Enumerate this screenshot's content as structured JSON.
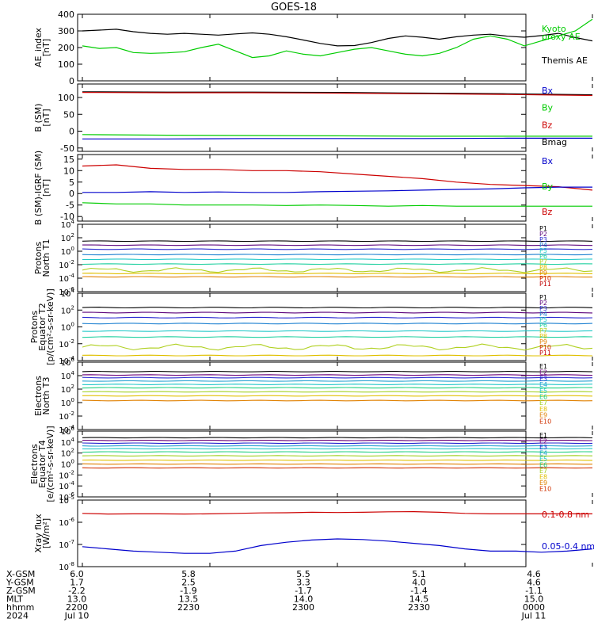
{
  "title": "GOES-18",
  "colors": {
    "black": "#000000",
    "green": "#00cc00",
    "blue": "#0000cc",
    "red": "#cc0000",
    "p_colors": [
      "#000000",
      "#5a007a",
      "#2a2ad0",
      "#1a7fd0",
      "#20c8c8",
      "#20d0a0",
      "#b0d020",
      "#e0c000",
      "#e08000",
      "#d02000",
      "#c00000"
    ],
    "e_colors": [
      "#000000",
      "#6a007a",
      "#2a2ad0",
      "#20a0d0",
      "#20c8c8",
      "#20d080",
      "#a0d020",
      "#e0c000",
      "#e08000",
      "#d03000",
      "#c00000"
    ]
  },
  "footer": {
    "rows": [
      {
        "label": "X-GSM",
        "values": [
          "6.0",
          "5.8",
          "5.5",
          "5.1",
          "4.6"
        ]
      },
      {
        "label": "Y-GSM",
        "values": [
          "1.7",
          "2.5",
          "3.3",
          "4.0",
          "4.6"
        ]
      },
      {
        "label": "Z-GSM",
        "values": [
          "-2.2",
          "-1.9",
          "-1.7",
          "-1.4",
          "-1.1"
        ]
      },
      {
        "label": "MLT",
        "values": [
          "13.0",
          "13.5",
          "14.0",
          "14.5",
          "15.0"
        ]
      },
      {
        "label": "hhmm",
        "values": [
          "2200",
          "2230",
          "2300",
          "2330",
          "0000"
        ]
      },
      {
        "label": "2024",
        "values": [
          "Jul 10",
          "",
          "",
          "",
          "Jul 11"
        ]
      }
    ]
  },
  "chart_data": [
    {
      "id": "ae",
      "type": "line",
      "ylabel": [
        "AE_index",
        "[nT]"
      ],
      "ylim": [
        0,
        400
      ],
      "yticks": [
        "0",
        "100",
        "200",
        "300",
        "400"
      ],
      "x": [
        0,
        2,
        4,
        6,
        8,
        10,
        12,
        14,
        16,
        18,
        20,
        22,
        24,
        26,
        28,
        30,
        32,
        34,
        36,
        38,
        40,
        42,
        44,
        46,
        48,
        50,
        52,
        54,
        56,
        58,
        60
      ],
      "series": [
        {
          "name": "Themis AE",
          "color": "black",
          "values": [
            300,
            305,
            310,
            295,
            285,
            280,
            285,
            280,
            275,
            282,
            288,
            280,
            265,
            245,
            225,
            210,
            212,
            230,
            255,
            270,
            262,
            250,
            265,
            275,
            280,
            268,
            262,
            272,
            285,
            260,
            240
          ]
        },
        {
          "name": "Kyoto proxy AE",
          "color": "green",
          "values": [
            210,
            195,
            200,
            170,
            165,
            168,
            175,
            200,
            220,
            180,
            140,
            150,
            180,
            160,
            150,
            170,
            190,
            200,
            180,
            160,
            150,
            165,
            200,
            250,
            270,
            250,
            210,
            240,
            270,
            300,
            370
          ]
        }
      ],
      "legend": [
        {
          "text": "Kyoto",
          "color": "green"
        },
        {
          "text": "proxy AE",
          "color": "green"
        },
        {
          "text": "Themis AE",
          "color": "black"
        }
      ]
    },
    {
      "id": "b",
      "type": "line",
      "ylabel": [
        "B (SM)",
        "[nT]"
      ],
      "ylim": [
        -60,
        140
      ],
      "yticks": [
        "-50",
        "0",
        "50",
        "100"
      ],
      "x": [
        0,
        10,
        20,
        30,
        40,
        50,
        60
      ],
      "series": [
        {
          "name": "Bmag",
          "color": "black",
          "values": [
            117,
            116,
            116,
            115,
            113,
            111,
            108
          ]
        },
        {
          "name": "Bz",
          "color": "red",
          "values": [
            115,
            114,
            114,
            113,
            111,
            109,
            106
          ]
        },
        {
          "name": "By",
          "color": "green",
          "values": [
            -10,
            -12,
            -13,
            -14,
            -15,
            -15,
            -15
          ]
        },
        {
          "name": "Bx",
          "color": "blue",
          "values": [
            -23,
            -23,
            -22,
            -22,
            -22,
            -21,
            -21
          ]
        }
      ],
      "legend": [
        {
          "text": "Bx",
          "color": "blue"
        },
        {
          "text": "By",
          "color": "green"
        },
        {
          "text": "Bz",
          "color": "red"
        },
        {
          "text": "Bmag",
          "color": "black"
        }
      ]
    },
    {
      "id": "db",
      "type": "line",
      "ylabel": [
        "B (SM)-IGRF (SM)",
        "[nT]"
      ],
      "ylim": [
        -12,
        17
      ],
      "yticks": [
        "-10",
        "-5",
        "0",
        "5",
        "10",
        "15"
      ],
      "x": [
        0,
        4,
        8,
        12,
        16,
        20,
        24,
        28,
        32,
        36,
        40,
        44,
        48,
        52,
        56,
        60
      ],
      "series": [
        {
          "name": "Bz",
          "color": "red",
          "values": [
            12,
            12.5,
            11,
            10.5,
            10.5,
            10,
            10,
            9.5,
            8.5,
            7.5,
            6.5,
            5,
            4,
            3.5,
            3,
            1.5
          ]
        },
        {
          "name": "Bx",
          "color": "blue",
          "values": [
            0.5,
            0.5,
            0.8,
            0.5,
            0.7,
            0.5,
            0.5,
            0.8,
            1,
            1.2,
            1.5,
            1.8,
            2,
            2.5,
            2.8,
            2.8
          ]
        },
        {
          "name": "By",
          "color": "green",
          "values": [
            -4,
            -4.5,
            -4.5,
            -5,
            -5,
            -5,
            -5.2,
            -5,
            -5.2,
            -5.5,
            -5.2,
            -5.5,
            -5.5,
            -5.5,
            -5.5,
            -5.5
          ]
        }
      ],
      "legend": [
        {
          "text": "Bx",
          "color": "blue"
        },
        {
          "text": "By",
          "color": "green"
        },
        {
          "text": "Bz",
          "color": "red"
        }
      ]
    },
    {
      "id": "p1",
      "type": "line",
      "scale": "log",
      "ylabel": [
        "Protons",
        "North T1"
      ],
      "ylim_exp": [
        -6,
        4
      ],
      "yticks_exp": [
        -6,
        -4,
        -2,
        0,
        2,
        4
      ],
      "channel_values_exp": [
        1.5,
        0.9,
        0.3,
        -0.5,
        -1.2,
        -1.9,
        -2.8,
        -3.3,
        -3.8
      ],
      "wiggle_channel": 6,
      "legend": [
        "P1",
        "P2",
        "P3",
        "P4",
        "P5",
        "P6",
        "P7",
        "P8",
        "P9",
        "P10",
        "P11"
      ]
    },
    {
      "id": "p2",
      "type": "line",
      "scale": "log",
      "ylabel": [
        "Protons",
        "Equator T2",
        "[p/(cm²-s-sr-keV)]"
      ],
      "ylim_exp": [
        -4,
        4
      ],
      "yticks_exp": [
        -4,
        -2,
        0,
        2,
        4
      ],
      "channel_values_exp": [
        2.3,
        1.7,
        1.1,
        0.4,
        -0.5,
        -1.2,
        -2.4,
        -3.4
      ],
      "wiggle_channel": 6,
      "legend": [
        "P1",
        "P2",
        "P3",
        "P4",
        "P5",
        "P6",
        "P7",
        "P8",
        "P9",
        "P10",
        "P11"
      ]
    },
    {
      "id": "e1",
      "type": "line",
      "scale": "log",
      "ylabel": [
        "Electrons",
        "North T3"
      ],
      "ylim_exp": [
        -4,
        6
      ],
      "yticks_exp": [
        -4,
        -2,
        0,
        2,
        4,
        6
      ],
      "channel_values_exp": [
        4.6,
        4.1,
        3.7,
        3.2,
        2.7,
        2.2,
        1.6,
        1.0,
        0.3
      ],
      "legend": [
        "E1",
        "E2",
        "E3",
        "E4",
        "E5",
        "E6",
        "E7",
        "E8",
        "E9",
        "E10"
      ]
    },
    {
      "id": "e2",
      "type": "line",
      "scale": "log",
      "ylabel": [
        "Electrons",
        "Equator T4",
        "[e/(cm²-s-sr-keV)]"
      ],
      "ylim_exp": [
        -6,
        6
      ],
      "yticks_exp": [
        -6,
        -4,
        -2,
        0,
        2,
        4,
        6
      ],
      "channel_values_exp": [
        4.8,
        4.3,
        3.8,
        3.3,
        2.8,
        2.2,
        1.5,
        0.7,
        0.0,
        -0.7
      ],
      "legend": [
        "E1",
        "E2",
        "E3",
        "E4",
        "E5",
        "E6",
        "E7",
        "E8",
        "E9",
        "E10"
      ]
    },
    {
      "id": "xray",
      "type": "line",
      "scale": "log",
      "ylabel": [
        "Xray flux",
        "[W/m²]"
      ],
      "ylim_exp": [
        -8,
        -5
      ],
      "yticks_exp": [
        -8,
        -7,
        -6,
        -5
      ],
      "x": [
        0,
        3,
        6,
        9,
        12,
        15,
        18,
        21,
        24,
        27,
        30,
        33,
        36,
        39,
        42,
        45,
        48,
        51,
        54,
        57,
        60
      ],
      "series": [
        {
          "name": "0.1-0.8 nm",
          "color": "red",
          "values_exp": [
            -5.6,
            -5.63,
            -5.62,
            -5.62,
            -5.63,
            -5.62,
            -5.6,
            -5.58,
            -5.57,
            -5.55,
            -5.56,
            -5.55,
            -5.53,
            -5.52,
            -5.55,
            -5.6,
            -5.62,
            -5.62,
            -5.62,
            -5.62,
            -5.62
          ]
        },
        {
          "name": "0.05-0.4 nm",
          "color": "blue",
          "values_exp": [
            -7.1,
            -7.2,
            -7.3,
            -7.35,
            -7.4,
            -7.4,
            -7.3,
            -7.05,
            -6.9,
            -6.8,
            -6.75,
            -6.78,
            -6.85,
            -6.95,
            -7.05,
            -7.2,
            -7.3,
            -7.3,
            -7.35,
            -7.3,
            -7.2
          ]
        }
      ],
      "legend": [
        {
          "text": "0.1-0.8 nm",
          "color": "red"
        },
        {
          "text": "0.05-0.4 nm",
          "color": "blue"
        }
      ]
    }
  ]
}
